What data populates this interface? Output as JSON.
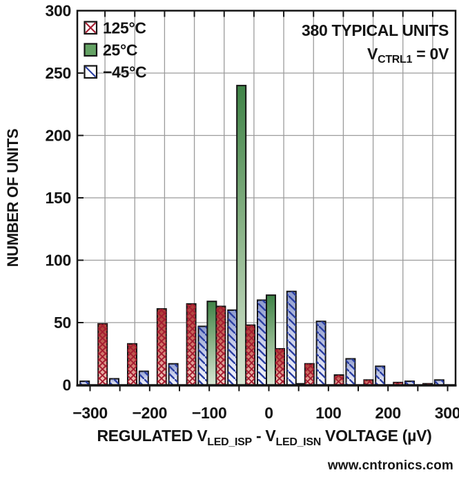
{
  "watermark": "www.cntronics.com",
  "annotations": {
    "line1": "380 TYPICAL UNITS",
    "line2_parts": [
      "V",
      "CTRL1",
      " = 0V"
    ]
  },
  "legend": {
    "position": "top-left",
    "items": [
      {
        "label": "125°C",
        "swatch": "red-crosshatch"
      },
      {
        "label": "25°C",
        "swatch": "green-solid"
      },
      {
        "label": "−45°C",
        "swatch": "blue-diagonal"
      }
    ]
  },
  "chart_data": {
    "type": "bar",
    "subtype": "histogram-grouped",
    "title": "",
    "total_units_label": "380 TYPICAL UNITS",
    "condition_label": "VCTRL1 = 0V",
    "ylabel": "NUMBER OF UNITS",
    "xlabel_parts": [
      "REGULATED V",
      "LED_ISP",
      " - V",
      "LED_ISN",
      " VOLTAGE (µV)"
    ],
    "bin_width_uV": 50,
    "bin_centers": [
      -300,
      -250,
      -200,
      -150,
      -100,
      -50,
      0,
      50,
      100,
      150,
      200,
      250,
      300
    ],
    "series": [
      {
        "name": "125°C",
        "style": "red-crosshatch",
        "values": [
          49,
          33,
          61,
          65,
          63,
          48,
          29,
          17,
          8,
          4,
          2,
          1,
          0
        ]
      },
      {
        "name": "25°C",
        "style": "green-solid",
        "values": [
          0,
          0,
          0,
          0,
          67,
          240,
          72,
          1,
          0,
          0,
          0,
          0,
          0
        ]
      },
      {
        "name": "−45°C",
        "style": "blue-diagonal",
        "values": [
          3,
          5,
          11,
          17,
          47,
          60,
          68,
          75,
          51,
          21,
          15,
          3,
          4
        ]
      }
    ],
    "x_tick_values": [
      -300,
      -200,
      -100,
      0,
      100,
      200,
      300
    ],
    "x_tick_labels": [
      "−300",
      "−200",
      "−100",
      "0",
      "100",
      "200",
      "300"
    ],
    "y_tick_values": [
      0,
      50,
      100,
      150,
      200,
      250,
      300
    ],
    "y_tick_labels": [
      "0",
      "50",
      "100",
      "150",
      "200",
      "250",
      "300"
    ],
    "ylim": [
      0,
      300
    ],
    "xlim_uV": [
      -320,
      315
    ],
    "grid": "gray lines; horizontal every 50 units, vertical every 50 µV offset 25 µV from ticks",
    "legend_position": "top-left-inside"
  },
  "colors": {
    "axis": "#141414",
    "grid": "#9b9b9b",
    "red_hatch": "#a51c30",
    "red_top": "#a93a33",
    "red_mid": "#cf7265",
    "red_bottom": "#f4d2c8",
    "green_top": "#3f8347",
    "green_mid": "#85b083",
    "green_bottom": "#d8e6d3",
    "legend_green": "#64a264",
    "blue_stripe": "#2b3fa3",
    "blue_top": "#8c9acd",
    "blue_mid": "#c6cce8",
    "blue_bottom": "#f8f8fd",
    "watermark_green": "#b4dcae"
  }
}
